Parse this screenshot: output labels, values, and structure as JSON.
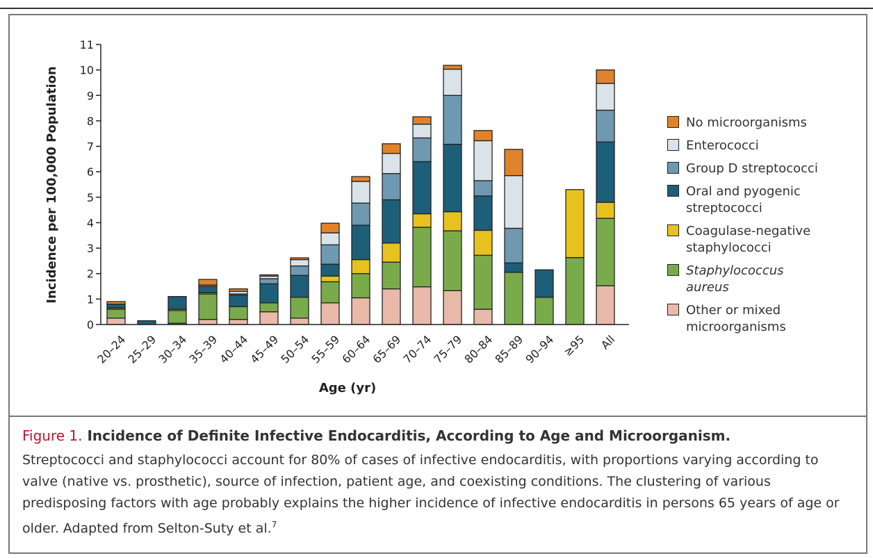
{
  "chart_data": {
    "type": "stacked_bar",
    "y_label": "Incidence per 100,000 Population",
    "x_label": "Age (yr)",
    "categories": [
      "20–24",
      "25–29",
      "30–34",
      "35–39",
      "40–44",
      "45–49",
      "50–54",
      "55–59",
      "60–64",
      "65–69",
      "70–74",
      "75–79",
      "80–84",
      "85–89",
      "90–94",
      "≥95",
      "All"
    ],
    "series": [
      {
        "name": "Other or mixed microorganisms",
        "color": "#e9b9a9",
        "values": [
          0.25,
          0,
          0.05,
          0.2,
          0.2,
          0.5,
          0.25,
          0.85,
          1.05,
          1.4,
          1.48,
          1.33,
          0.6,
          0,
          0,
          0,
          1.52
        ]
      },
      {
        "name": "Staphylococcus aureus",
        "color": "#7aab4b",
        "font_style": "italic",
        "values": [
          0.35,
          0,
          0.5,
          1.0,
          0.5,
          0.35,
          0.82,
          0.83,
          0.95,
          1.05,
          2.34,
          2.35,
          2.12,
          2.05,
          1.07,
          2.63,
          2.65
        ]
      },
      {
        "name": "Coagulase-negative staphylococci",
        "color": "#e7c21f",
        "values": [
          0.05,
          0,
          0.05,
          0.05,
          0,
          0,
          0,
          0.22,
          0.55,
          0.75,
          0.53,
          0.75,
          0.98,
          0,
          0,
          2.67,
          0.63
        ]
      },
      {
        "name": "Oral and pyogenic streptococci",
        "color": "#1d5e79",
        "values": [
          0.15,
          0.15,
          0.5,
          0.25,
          0.45,
          0.75,
          0.86,
          0.47,
          1.35,
          1.7,
          2.05,
          2.65,
          1.35,
          0.37,
          1.08,
          0,
          2.37
        ]
      },
      {
        "name": "Group D streptococci",
        "color": "#6f98b1",
        "values": [
          0,
          0,
          0,
          0,
          0.05,
          0.2,
          0.37,
          0.76,
          0.87,
          1.03,
          0.93,
          1.92,
          0.6,
          1.36,
          0,
          0,
          1.25
        ]
      },
      {
        "name": "Enterococci",
        "color": "#d9e3e9",
        "values": [
          0,
          0,
          0,
          0.05,
          0.1,
          0.1,
          0.25,
          0.47,
          0.85,
          0.79,
          0.54,
          1.03,
          1.57,
          2.07,
          0,
          0,
          1.05
        ]
      },
      {
        "name": "No microorganisms",
        "color": "#e0832b",
        "values": [
          0.1,
          0,
          0,
          0.22,
          0.1,
          0.05,
          0.07,
          0.38,
          0.19,
          0.38,
          0.29,
          0.15,
          0.4,
          1.03,
          0,
          0,
          0.53
        ]
      }
    ],
    "ylim": [
      0,
      11
    ],
    "yticks": [
      0,
      1,
      2,
      3,
      4,
      5,
      6,
      7,
      8,
      9,
      10,
      11
    ]
  },
  "caption": {
    "label": "Figure 1.",
    "title": "Incidence of Definite Infective Endocarditis, According to Age and Microorganism.",
    "text": "Streptococci and staphylococci account for 80% of cases of infective endocarditis, with proportions varying according to valve (native vs. prosthetic), source of infection, patient age, and coexisting conditions. The clustering of various predisposing factors with age probably explains the higher incidence of infective endocarditis in persons 65 years of age or older. Adapted from Selton-Suty et al.",
    "reference": "7"
  }
}
